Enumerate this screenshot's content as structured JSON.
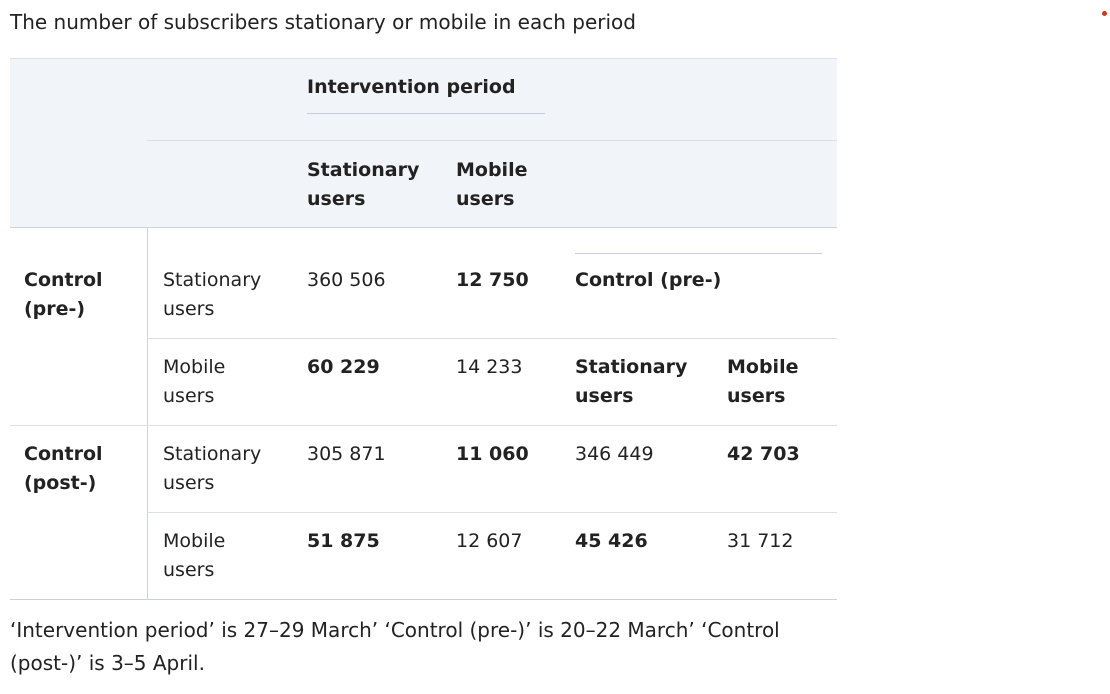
{
  "caption": "The number of subscribers stationary or mobile in each period",
  "header": {
    "intervention_label": "Intervention period",
    "col_stationary": [
      "Stationary",
      "users"
    ],
    "col_mobile": [
      "Mobile",
      "users"
    ]
  },
  "groups": [
    {
      "label": [
        "Control",
        "(pre-)"
      ],
      "rows": [
        {
          "label": [
            "Stationary",
            "users"
          ],
          "stationary": "360 506",
          "mobile": "12 750"
        },
        {
          "label": [
            "Mobile",
            "users"
          ],
          "stationary": "60 229",
          "mobile": "14 233"
        }
      ]
    },
    {
      "label": [
        "Control",
        "(post-)"
      ],
      "rows": [
        {
          "label": [
            "Stationary",
            "users"
          ],
          "stationary": "305 871",
          "mobile": "11 060",
          "pre_stationary": "346 449",
          "pre_mobile": "42 703"
        },
        {
          "label": [
            "Mobile",
            "users"
          ],
          "stationary": "51 875",
          "mobile": "12 607",
          "pre_stationary": "45 426",
          "pre_mobile": "31 712"
        }
      ]
    }
  ],
  "sub_header": {
    "label": "Control (pre-)",
    "col_stationary": [
      "Stationary",
      "users"
    ],
    "col_mobile": [
      "Mobile",
      "users"
    ]
  },
  "footnote": "‘Intervention period’ is 27–29 March’ ‘Control (pre-)’ is 20–22 March’ ‘Control (post-)’ is 3–5 April."
}
